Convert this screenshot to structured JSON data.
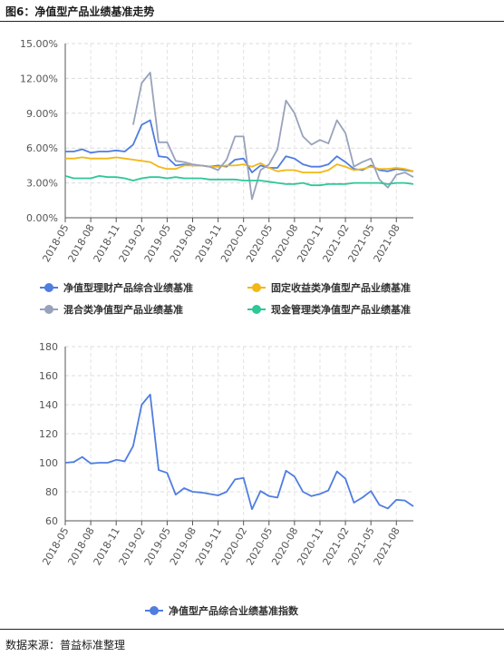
{
  "header": {
    "figure_title": "图6：净值型产品业绩基准走势"
  },
  "footer": {
    "source": "数据来源：普益标准整理"
  },
  "chart_data": [
    {
      "type": "line",
      "x": [
        "2018-05",
        "2018-06",
        "2018-07",
        "2018-08",
        "2018-09",
        "2018-10",
        "2018-11",
        "2018-12",
        "2019-01",
        "2019-02",
        "2019-03",
        "2019-04",
        "2019-05",
        "2019-06",
        "2019-07",
        "2019-08",
        "2019-09",
        "2019-10",
        "2019-11",
        "2019-12",
        "2020-01",
        "2020-02",
        "2020-03",
        "2020-04",
        "2020-05",
        "2020-06",
        "2020-07",
        "2020-08",
        "2020-09",
        "2020-10",
        "2020-11",
        "2020-12",
        "2021-01",
        "2021-02",
        "2021-03",
        "2021-04",
        "2021-05",
        "2021-06",
        "2021-07",
        "2021-08",
        "2021-09",
        "2021-10"
      ],
      "x_tick_labels": [
        "2018-05",
        "2018-08",
        "2018-11",
        "2019-02",
        "2019-05",
        "2019-08",
        "2019-11",
        "2020-02",
        "2020-05",
        "2020-08",
        "2020-11",
        "2021-02",
        "2021-05",
        "2021-08"
      ],
      "y_tick_labels": [
        "0.00%",
        "3.00%",
        "6.00%",
        "9.00%",
        "12.00%",
        "15.00%"
      ],
      "ylim": [
        0,
        15
      ],
      "grid": true,
      "legend": "bottom",
      "series": [
        {
          "name": "净值型理财产品综合业绩基准",
          "color": "#4f7de0",
          "values": [
            5.7,
            5.7,
            5.9,
            5.6,
            5.7,
            5.7,
            5.8,
            5.7,
            6.3,
            8.0,
            8.4,
            5.3,
            5.2,
            4.5,
            4.6,
            4.5,
            4.5,
            4.4,
            4.5,
            4.4,
            5.0,
            5.1,
            3.9,
            4.5,
            4.3,
            4.3,
            5.3,
            5.1,
            4.6,
            4.4,
            4.4,
            4.6,
            5.3,
            4.8,
            4.2,
            4.1,
            4.5,
            4.1,
            4.0,
            4.2,
            4.1,
            4.0
          ]
        },
        {
          "name": "固定收益类净值型产品业绩基准",
          "color": "#f2b817",
          "values": [
            5.1,
            5.1,
            5.2,
            5.1,
            5.1,
            5.1,
            5.2,
            5.1,
            5.0,
            4.9,
            4.8,
            4.4,
            4.2,
            4.2,
            4.5,
            4.5,
            4.5,
            4.4,
            4.4,
            4.5,
            4.5,
            4.6,
            4.4,
            4.7,
            4.3,
            4.0,
            4.1,
            4.1,
            3.9,
            3.9,
            3.9,
            4.1,
            4.6,
            4.4,
            4.1,
            4.2,
            4.4,
            4.2,
            4.2,
            4.3,
            4.2,
            4.0
          ]
        },
        {
          "name": "混合类净值型产品业绩基准",
          "color": "#98a2bb",
          "values": [
            null,
            null,
            null,
            null,
            null,
            null,
            null,
            null,
            8.0,
            11.6,
            12.5,
            6.5,
            6.5,
            4.9,
            4.8,
            4.6,
            4.5,
            4.4,
            4.1,
            5.0,
            7.0,
            7.0,
            1.6,
            4.1,
            4.6,
            5.9,
            10.1,
            9.0,
            7.0,
            6.3,
            6.7,
            6.4,
            8.4,
            7.3,
            4.4,
            4.8,
            5.1,
            3.3,
            2.6,
            3.7,
            3.9,
            3.5
          ]
        },
        {
          "name": "现金管理类净值型产品业绩基准",
          "color": "#2dc798",
          "values": [
            3.6,
            3.4,
            3.4,
            3.4,
            3.6,
            3.5,
            3.5,
            3.4,
            3.2,
            3.4,
            3.5,
            3.5,
            3.4,
            3.5,
            3.4,
            3.4,
            3.4,
            3.3,
            3.3,
            3.3,
            3.3,
            3.2,
            3.2,
            3.2,
            3.1,
            3.0,
            2.9,
            2.9,
            3.0,
            2.8,
            2.8,
            2.9,
            2.9,
            2.9,
            3.0,
            3.0,
            3.0,
            3.0,
            2.9,
            3.0,
            3.0,
            2.9
          ]
        }
      ]
    },
    {
      "type": "line",
      "x": [
        "2018-05",
        "2018-06",
        "2018-07",
        "2018-08",
        "2018-09",
        "2018-10",
        "2018-11",
        "2018-12",
        "2019-01",
        "2019-02",
        "2019-03",
        "2019-04",
        "2019-05",
        "2019-06",
        "2019-07",
        "2019-08",
        "2019-09",
        "2019-10",
        "2019-11",
        "2019-12",
        "2020-01",
        "2020-02",
        "2020-03",
        "2020-04",
        "2020-05",
        "2020-06",
        "2020-07",
        "2020-08",
        "2020-09",
        "2020-10",
        "2020-11",
        "2020-12",
        "2021-01",
        "2021-02",
        "2021-03",
        "2021-04",
        "2021-05",
        "2021-06",
        "2021-07",
        "2021-08",
        "2021-09",
        "2021-10"
      ],
      "x_tick_labels": [
        "2018-05",
        "2018-08",
        "2018-11",
        "2019-02",
        "2019-05",
        "2019-08",
        "2019-11",
        "2020-02",
        "2020-05",
        "2020-08",
        "2020-11",
        "2021-02",
        "2021-05",
        "2021-08"
      ],
      "y_tick_labels": [
        "60",
        "80",
        "100",
        "120",
        "140",
        "160",
        "180"
      ],
      "ylim": [
        60,
        180
      ],
      "grid": true,
      "legend": "bottom",
      "series": [
        {
          "name": "净值型产品综合业绩基准指数",
          "color": "#4f7de0",
          "values": [
            100,
            100.5,
            104,
            99.5,
            100,
            100,
            102,
            101,
            111.5,
            140,
            147,
            95,
            93,
            78,
            82.5,
            80,
            79.5,
            78.5,
            77.5,
            80,
            88.5,
            89.5,
            68,
            80.5,
            77,
            76,
            94.5,
            90.5,
            80,
            77,
            78.5,
            81,
            94,
            89,
            72.5,
            76,
            80.5,
            71,
            68.5,
            74.5,
            74,
            70
          ]
        }
      ]
    }
  ]
}
